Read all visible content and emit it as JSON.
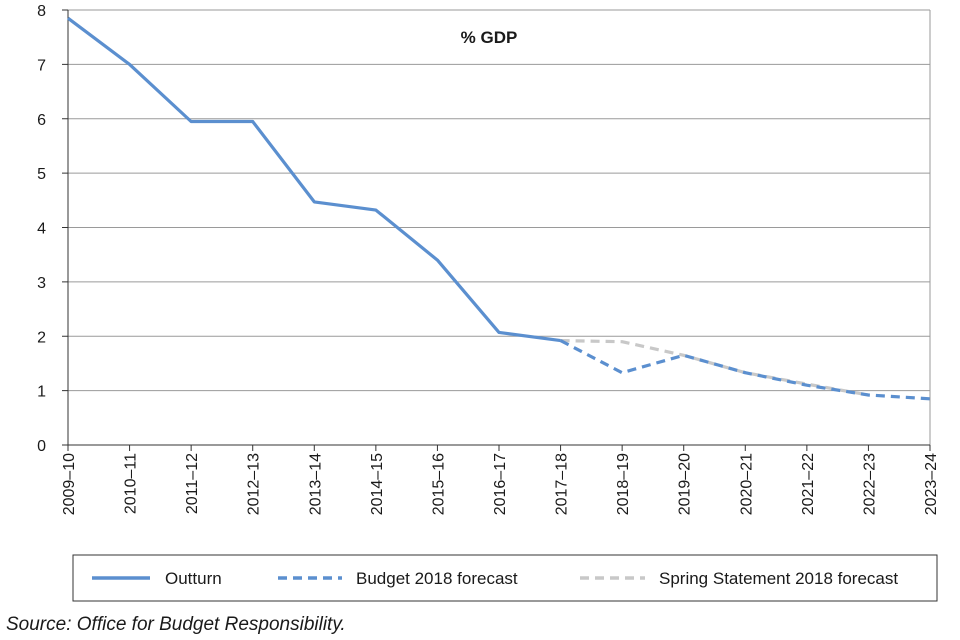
{
  "chart_data": {
    "type": "line",
    "title": "% GDP",
    "categories": [
      "2009–10",
      "2010–11",
      "2011–12",
      "2012–13",
      "2013–14",
      "2014–15",
      "2015–16",
      "2016–17",
      "2017–18",
      "2018–19",
      "2019–20",
      "2020–21",
      "2021–22",
      "2022–23",
      "2023–24"
    ],
    "ylim": [
      0,
      8
    ],
    "yticks": [
      0,
      1,
      2,
      3,
      4,
      5,
      6,
      7,
      8
    ],
    "grid": true,
    "series": [
      {
        "name": "Outturn",
        "style": "solid",
        "color": "#5b8fcf",
        "values": [
          7.85,
          7.0,
          5.95,
          5.95,
          4.47,
          4.32,
          3.4,
          2.07,
          1.92,
          null,
          null,
          null,
          null,
          null,
          null
        ]
      },
      {
        "name": "Budget 2018 forecast",
        "style": "dashed",
        "color": "#5b8fcf",
        "values": [
          null,
          null,
          null,
          null,
          null,
          null,
          null,
          null,
          1.92,
          1.33,
          1.65,
          1.33,
          1.1,
          0.92,
          0.85
        ]
      },
      {
        "name": "Spring Statement 2018 forecast",
        "style": "dashed",
        "color": "#c8c8c8",
        "values": [
          null,
          null,
          null,
          null,
          null,
          null,
          null,
          null,
          1.92,
          1.9,
          1.65,
          1.33,
          1.12,
          0.92,
          null
        ]
      }
    ],
    "legend": {
      "position": "bottom",
      "entries": [
        "Outturn",
        "Budget 2018 forecast",
        "Spring Statement 2018 forecast"
      ]
    },
    "source": "Source: Office for Budget Responsibility."
  }
}
